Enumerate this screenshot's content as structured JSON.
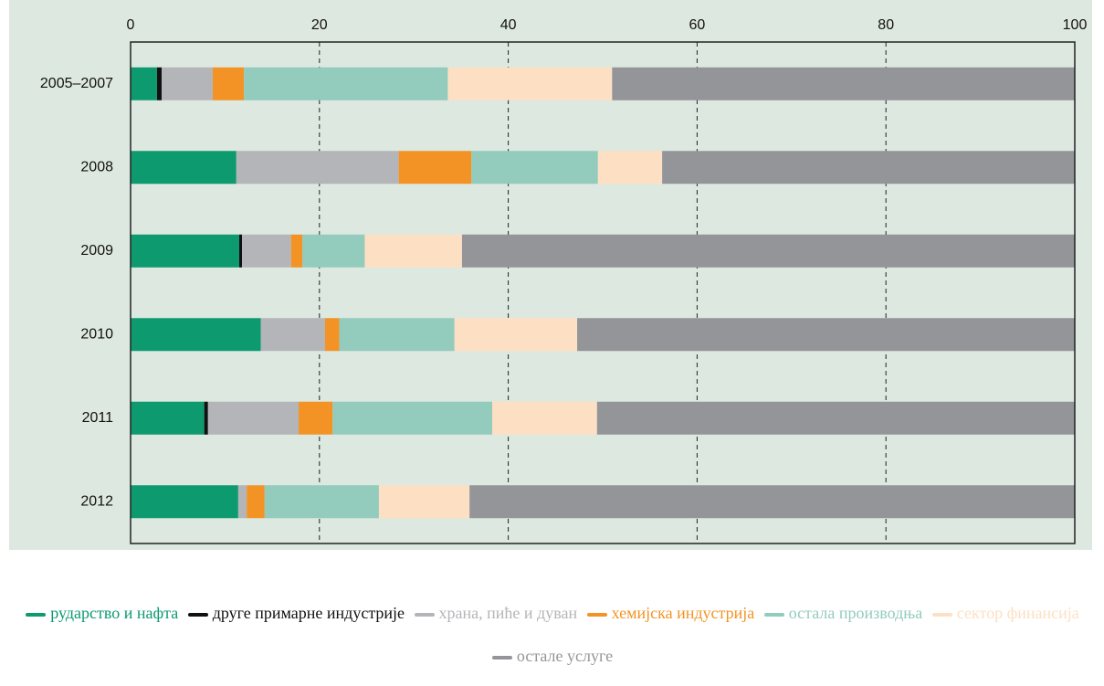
{
  "chart_data": {
    "type": "stacked_barh",
    "categories": [
      "2005–2007",
      "2008",
      "2009",
      "2010",
      "2011",
      "2012"
    ],
    "series": [
      {
        "name": "рударство и нафта",
        "color": "#0d9a6f",
        "values": [
          2.8,
          11.2,
          11.5,
          13.8,
          7.8,
          11.4
        ]
      },
      {
        "name": "друге примарне индустрије",
        "color": "#111111",
        "values": [
          0.5,
          0,
          0.3,
          0,
          0.4,
          0
        ]
      },
      {
        "name": "храна, пиће и дуван",
        "color": "#b4b5b8",
        "values": [
          5.4,
          17.2,
          5.2,
          6.8,
          9.6,
          0.9
        ]
      },
      {
        "name": "хемијска индустрија",
        "color": "#f39325",
        "values": [
          3.3,
          7.7,
          1.2,
          1.5,
          3.6,
          1.9
        ]
      },
      {
        "name": "остала производња",
        "color": "#93cbbd",
        "values": [
          21.6,
          13.4,
          6.6,
          12.2,
          16.9,
          12.1
        ]
      },
      {
        "name": "сектор финансија",
        "color": "#fde0c4",
        "values": [
          17.4,
          6.8,
          10.3,
          13.0,
          11.1,
          9.6
        ]
      },
      {
        "name": "остале услуге",
        "color": "#939598",
        "values": [
          49.0,
          43.7,
          64.9,
          52.7,
          50.6,
          64.1
        ]
      }
    ],
    "xlim": [
      0,
      100
    ],
    "xticks": [
      0,
      20,
      40,
      60,
      80,
      100
    ],
    "grid": true
  }
}
